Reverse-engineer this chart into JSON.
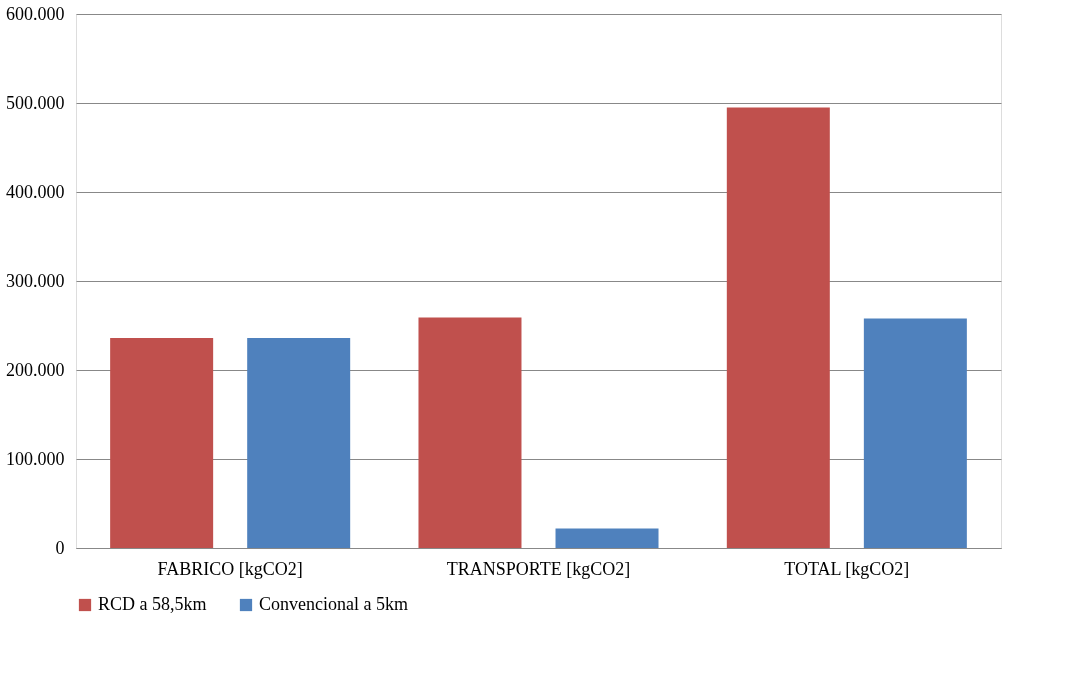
{
  "chart_data": {
    "type": "bar",
    "categories": [
      "FABRICO [kgCO2]",
      "TRANSPORTE [kgCO2]",
      "TOTAL [kgCO2]"
    ],
    "series": [
      {
        "name": "RCD a 58,5km",
        "color": "#c0504d",
        "values": [
          236000,
          259000,
          495000
        ]
      },
      {
        "name": "Convencional a 5km",
        "color": "#4f81bd",
        "values": [
          236000,
          22000,
          258000
        ]
      }
    ],
    "ylim": [
      0,
      600000
    ],
    "yticks": [
      {
        "value": 0,
        "label": "0"
      },
      {
        "value": 100000,
        "label": "100.000"
      },
      {
        "value": 200000,
        "label": "200.000"
      },
      {
        "value": 300000,
        "label": "300.000"
      },
      {
        "value": 400000,
        "label": "400.000"
      },
      {
        "value": 500000,
        "label": "500.000"
      },
      {
        "value": 600000,
        "label": "600.000"
      }
    ],
    "grid": "y",
    "legend": "bottom"
  }
}
